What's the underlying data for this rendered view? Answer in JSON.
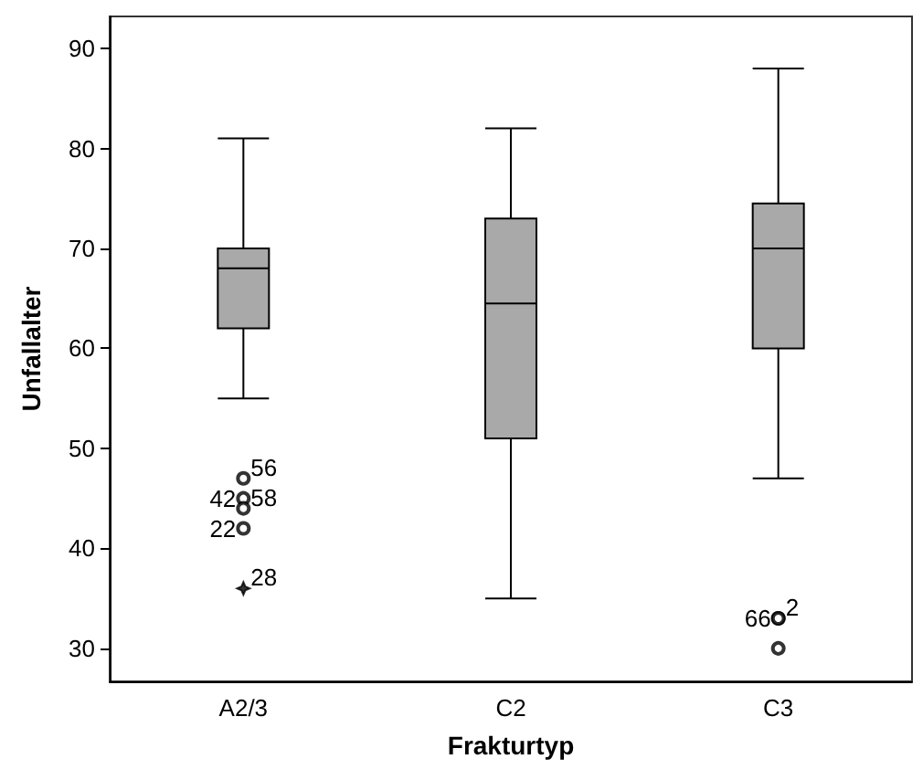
{
  "chart_data": {
    "type": "box",
    "xlabel": "Frakturtyp",
    "ylabel": "Unfallalter",
    "categories": [
      "A2/3",
      "C2",
      "C3"
    ],
    "ylim": [
      26.7,
      93.2
    ],
    "yticks": [
      30,
      40,
      50,
      60,
      70,
      80,
      90
    ],
    "grid": false,
    "series": [
      {
        "color": "#a9a9a9",
        "boxes": [
          {
            "low": 55,
            "q1": 62,
            "median": 68,
            "q3": 70,
            "high": 81,
            "outliers": [
              47,
              45,
              44,
              42
            ]
          },
          {
            "low": 35,
            "q1": 51,
            "median": 64.5,
            "q3": 73,
            "high": 82
          },
          {
            "low": 47,
            "q1": 60,
            "median": 70,
            "q3": 74.5,
            "high": 88,
            "outliers": [
              33,
              33,
              30
            ]
          }
        ]
      },
      {
        "type": "scatter",
        "marker": "star",
        "color": "#000000",
        "x": [
          "A2/3"
        ],
        "values": [
          36
        ]
      }
    ],
    "annotations": [
      "56",
      "42",
      "58",
      "22",
      "28",
      "2",
      "66"
    ]
  }
}
